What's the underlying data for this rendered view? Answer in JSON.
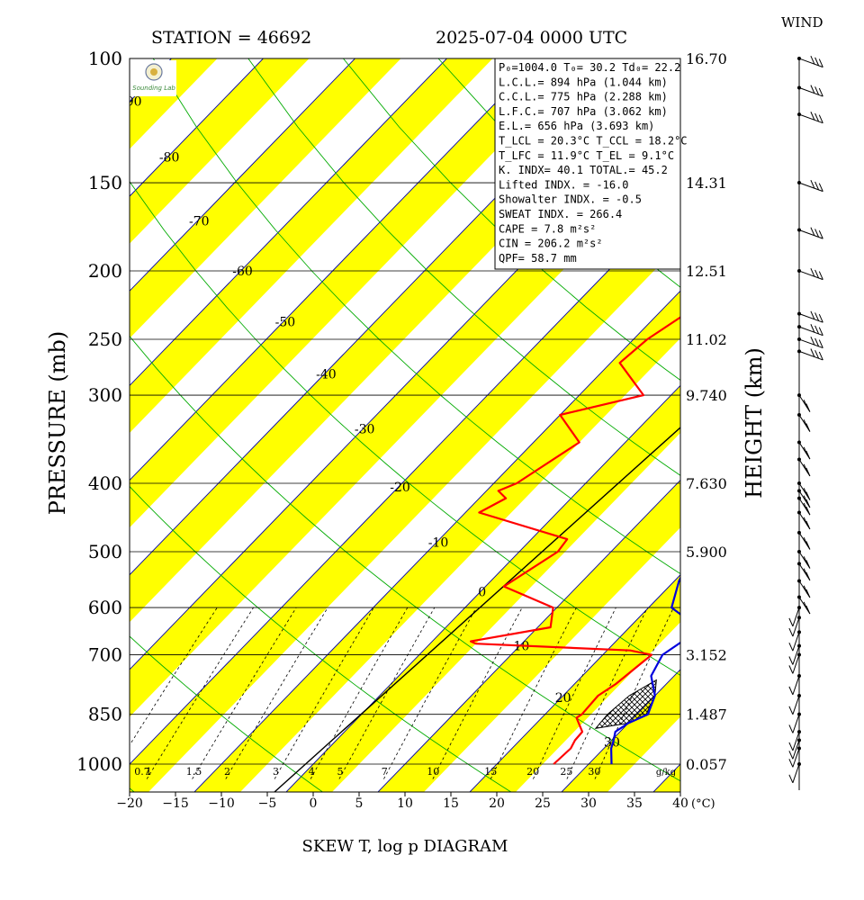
{
  "chart_data": {
    "type": "skew-t",
    "station_label": "STATION = 46692",
    "datetime_label": "2025-07-04 0000 UTC",
    "title": "SKEW T, log p DIAGRAM",
    "ylabel": "PRESSURE (mb)",
    "ylabel_right": "HEIGHT (km)",
    "wind_label": "WIND",
    "temp_unit": "(°C)",
    "mixing_unit": "g/kg",
    "logo_text": "Sounding Lab",
    "pressure_ticks": [
      100,
      150,
      200,
      250,
      300,
      400,
      500,
      600,
      700,
      850,
      1000
    ],
    "height_ticks": [
      {
        "p": 100,
        "label": "16.70"
      },
      {
        "p": 150,
        "label": "14.31"
      },
      {
        "p": 200,
        "label": "12.51"
      },
      {
        "p": 250,
        "label": "11.02"
      },
      {
        "p": 300,
        "label": "9.740"
      },
      {
        "p": 400,
        "label": "7.630"
      },
      {
        "p": 500,
        "label": "5.900"
      },
      {
        "p": 700,
        "label": "3.152"
      },
      {
        "p": 850,
        "label": "1.487"
      },
      {
        "p": 1000,
        "label": "0.057"
      }
    ],
    "temp_ticks": [
      -20,
      -15,
      -10,
      -5,
      0,
      5,
      10,
      15,
      20,
      25,
      30,
      35,
      40
    ],
    "isotherm_labels": [
      {
        "t": -90,
        "p": 115
      },
      {
        "t": -80,
        "p": 138
      },
      {
        "t": -70,
        "p": 170
      },
      {
        "t": -60,
        "p": 200
      },
      {
        "t": -50,
        "p": 236
      },
      {
        "t": -40,
        "p": 280
      },
      {
        "t": -30,
        "p": 335
      },
      {
        "t": -20,
        "p": 405
      },
      {
        "t": -10,
        "p": 485
      },
      {
        "t": 0,
        "p": 570
      },
      {
        "t": 10,
        "p": 680
      },
      {
        "t": 20,
        "p": 805
      },
      {
        "t": 30,
        "p": 930
      }
    ],
    "mixing_ratio_labels": [
      "0.7",
      "1",
      "1.5",
      "2",
      "3",
      "4",
      "5",
      "7",
      "10",
      "15",
      "20",
      "25",
      "30"
    ],
    "mixing_ratio_values": [
      0.7,
      1,
      1.5,
      2,
      3,
      4,
      5,
      7,
      10,
      15,
      20,
      25,
      30
    ],
    "stats": [
      "P₀=1004.0 T₀= 30.2 Td₀= 22.2",
      "L.C.L.= 894 hPa (1.044 km)",
      "C.C.L.= 775 hPa (2.288 km)",
      "L.F.C.= 707 hPa (3.062 km)",
      "E.L.= 656 hPa (3.693 km)",
      "T_LCL = 20.3°C T_CCL = 18.2°C",
      "T_LFC = 11.9°C T_EL = 9.1°C",
      "K. INDX= 40.1 TOTAL.= 45.2",
      "Lifted INDX. = -16.0",
      "Showalter INDX. = -0.5",
      "SWEAT INDX. = 266.4",
      "CAPE = 7.8 m²s²",
      "CIN = 206.2 m²s²",
      "QPF= 58.7 mm"
    ],
    "series": [
      {
        "color": "#ff0000",
        "points": [
          {
            "p": 1000,
            "x": 26.2
          },
          {
            "p": 950,
            "x": 26.4
          },
          {
            "p": 925,
            "x": 26.0
          },
          {
            "p": 900,
            "x": 25.9
          },
          {
            "p": 875,
            "x": 24.6
          },
          {
            "p": 860,
            "x": 23.8
          },
          {
            "p": 850,
            "x": 24.0
          },
          {
            "p": 800,
            "x": 23.8
          },
          {
            "p": 770,
            "x": 24.5
          },
          {
            "p": 700,
            "x": 25.3
          },
          {
            "p": 690,
            "x": 22.5
          },
          {
            "p": 675,
            "x": 5.0
          },
          {
            "p": 670,
            "x": 4.2
          },
          {
            "p": 640,
            "x": 11.4
          },
          {
            "p": 600,
            "x": 9.6
          },
          {
            "p": 560,
            "x": 2.0
          },
          {
            "p": 500,
            "x": 4.2
          },
          {
            "p": 480,
            "x": 3.9
          },
          {
            "p": 440,
            "x": -8.5
          },
          {
            "p": 420,
            "x": -7.1
          },
          {
            "p": 410,
            "x": -8.7
          },
          {
            "p": 400,
            "x": -7.5
          },
          {
            "p": 350,
            "x": -5.0
          },
          {
            "p": 320,
            "x": -10.0
          },
          {
            "p": 300,
            "x": -3.0
          },
          {
            "p": 270,
            "x": -9.0
          },
          {
            "p": 250,
            "x": -8.5
          },
          {
            "p": 230,
            "x": -7.0
          },
          {
            "p": 200,
            "x": 2.5
          },
          {
            "p": 190,
            "x": 1.5
          },
          {
            "p": 175,
            "x": 1.7
          },
          {
            "p": 165,
            "x": -2.8
          },
          {
            "p": 150,
            "x": -6.5
          },
          {
            "p": 140,
            "x": -5.5
          },
          {
            "p": 120,
            "x": -7.5
          },
          {
            "p": 110,
            "x": -2.8
          },
          {
            "p": 100,
            "x": -3.8
          }
        ]
      },
      {
        "color": "#0000dd",
        "points": [
          {
            "p": 1000,
            "x": 32.5
          },
          {
            "p": 950,
            "x": 30.8
          },
          {
            "p": 925,
            "x": 30.2
          },
          {
            "p": 900,
            "x": 29.5
          },
          {
            "p": 875,
            "x": 30.0
          },
          {
            "p": 850,
            "x": 31.2
          },
          {
            "p": 800,
            "x": 30.0
          },
          {
            "p": 750,
            "x": 27.5
          },
          {
            "p": 700,
            "x": 26.5
          },
          {
            "p": 660,
            "x": 27.5
          },
          {
            "p": 620,
            "x": 25.0
          },
          {
            "p": 600,
            "x": 22.5
          },
          {
            "p": 550,
            "x": 20.5
          },
          {
            "p": 500,
            "x": 19.0
          },
          {
            "p": 470,
            "x": 19.5
          },
          {
            "p": 440,
            "x": 18.0
          },
          {
            "p": 400,
            "x": 15.0
          },
          {
            "p": 370,
            "x": 14.0
          },
          {
            "p": 340,
            "x": 14.0
          },
          {
            "p": 320,
            "x": 13.5
          },
          {
            "p": 300,
            "x": 12.0
          },
          {
            "p": 280,
            "x": 13.5
          },
          {
            "p": 250,
            "x": 10.0
          },
          {
            "p": 200,
            "x": 5.5
          },
          {
            "p": 170,
            "x": 3.8
          },
          {
            "p": 150,
            "x": 3.8
          },
          {
            "p": 140,
            "x": 2.7
          },
          {
            "p": 120,
            "x": 3.5
          },
          {
            "p": 110,
            "x": 2.3
          },
          {
            "p": 100,
            "x": 4.8
          }
        ]
      }
    ],
    "wind_levels": [
      100,
      110,
      120,
      150,
      175,
      200,
      230,
      240,
      250,
      260,
      300,
      320,
      350,
      370,
      400,
      410,
      420,
      440,
      470,
      500,
      520,
      550,
      580,
      600,
      620,
      650,
      680,
      700,
      750,
      800,
      850,
      900,
      925,
      950,
      1000
    ],
    "colors": {
      "red_trace": "#ff0000",
      "blue_trace": "#0000dd",
      "yellow_band": "#ffff00",
      "isotherm": "#0000aa",
      "dry_adiabat": "#00aa00"
    }
  }
}
